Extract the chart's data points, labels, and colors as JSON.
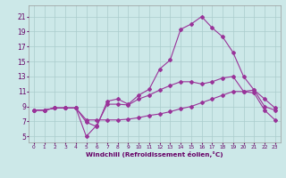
{
  "xlabel": "Windchill (Refroidissement éolien,°C)",
  "background_color": "#cce8e8",
  "line_color": "#993399",
  "grid_color": "#aacccc",
  "x_ticks": [
    0,
    1,
    2,
    3,
    4,
    5,
    6,
    7,
    8,
    9,
    10,
    11,
    12,
    13,
    14,
    15,
    16,
    17,
    18,
    19,
    20,
    21,
    22,
    23
  ],
  "y_ticks": [
    5,
    7,
    9,
    11,
    13,
    15,
    17,
    19,
    21
  ],
  "xlim": [
    -0.5,
    23.5
  ],
  "ylim": [
    4.2,
    22.5
  ],
  "line1_x": [
    0,
    1,
    2,
    3,
    4,
    5,
    6,
    7,
    8,
    9,
    10,
    11,
    12,
    13,
    14,
    15,
    16,
    17,
    18,
    19,
    20,
    21,
    22,
    23
  ],
  "line1_y": [
    8.5,
    8.5,
    8.8,
    8.8,
    8.8,
    6.9,
    6.3,
    9.7,
    10.0,
    9.3,
    10.5,
    11.3,
    14.0,
    15.2,
    19.3,
    20.0,
    21.0,
    19.5,
    18.3,
    16.2,
    13.0,
    11.2,
    9.0,
    8.5
  ],
  "line2_x": [
    0,
    1,
    2,
    3,
    4,
    5,
    6,
    7,
    8,
    9,
    10,
    11,
    12,
    13,
    14,
    15,
    16,
    17,
    18,
    19,
    20,
    21,
    22,
    23
  ],
  "line2_y": [
    8.5,
    8.5,
    8.8,
    8.8,
    8.8,
    5.0,
    6.5,
    9.3,
    9.3,
    9.2,
    10.0,
    10.5,
    11.2,
    11.8,
    12.3,
    12.3,
    12.0,
    12.3,
    12.8,
    13.0,
    11.0,
    11.2,
    10.0,
    8.8
  ],
  "line3_x": [
    0,
    1,
    2,
    3,
    4,
    5,
    6,
    7,
    8,
    9,
    10,
    11,
    12,
    13,
    14,
    15,
    16,
    17,
    18,
    19,
    20,
    21,
    22,
    23
  ],
  "line3_y": [
    8.5,
    8.5,
    8.8,
    8.8,
    8.8,
    7.2,
    7.2,
    7.2,
    7.2,
    7.3,
    7.5,
    7.8,
    8.0,
    8.3,
    8.7,
    9.0,
    9.5,
    10.0,
    10.5,
    11.0,
    11.0,
    10.8,
    8.5,
    7.2
  ]
}
